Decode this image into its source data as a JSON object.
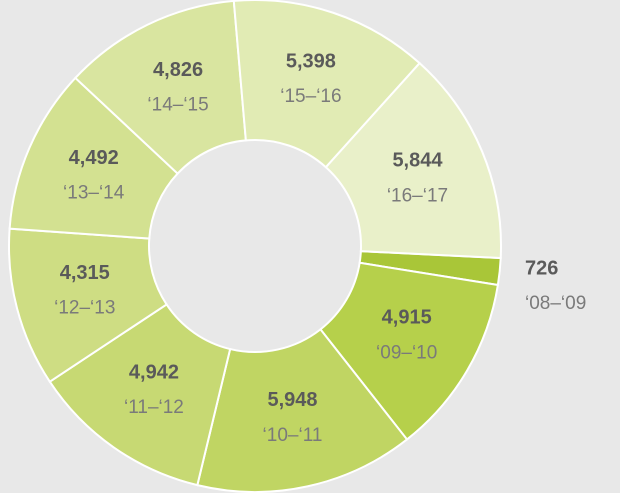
{
  "chart_data": {
    "type": "donut",
    "categories": [
      "‘08–‘09",
      "‘09–‘10",
      "‘10–‘11",
      "‘11–‘12",
      "‘12–‘13",
      "‘13–‘14",
      "‘14–‘15",
      "‘15–‘16",
      "‘16–‘17"
    ],
    "values": [
      726,
      4915,
      5948,
      4942,
      4315,
      4492,
      4826,
      5398,
      5844
    ],
    "value_labels": [
      "726",
      "4,915",
      "5,948",
      "4,942",
      "4,315",
      "4,492",
      "4,826",
      "5,398",
      "5,844"
    ],
    "colors": [
      "#a9c638",
      "#b6d04b",
      "#c0d563",
      "#c7d973",
      "#cedd83",
      "#d3e191",
      "#d9e5a0",
      "#e1ebb4",
      "#e9f0c9"
    ]
  }
}
